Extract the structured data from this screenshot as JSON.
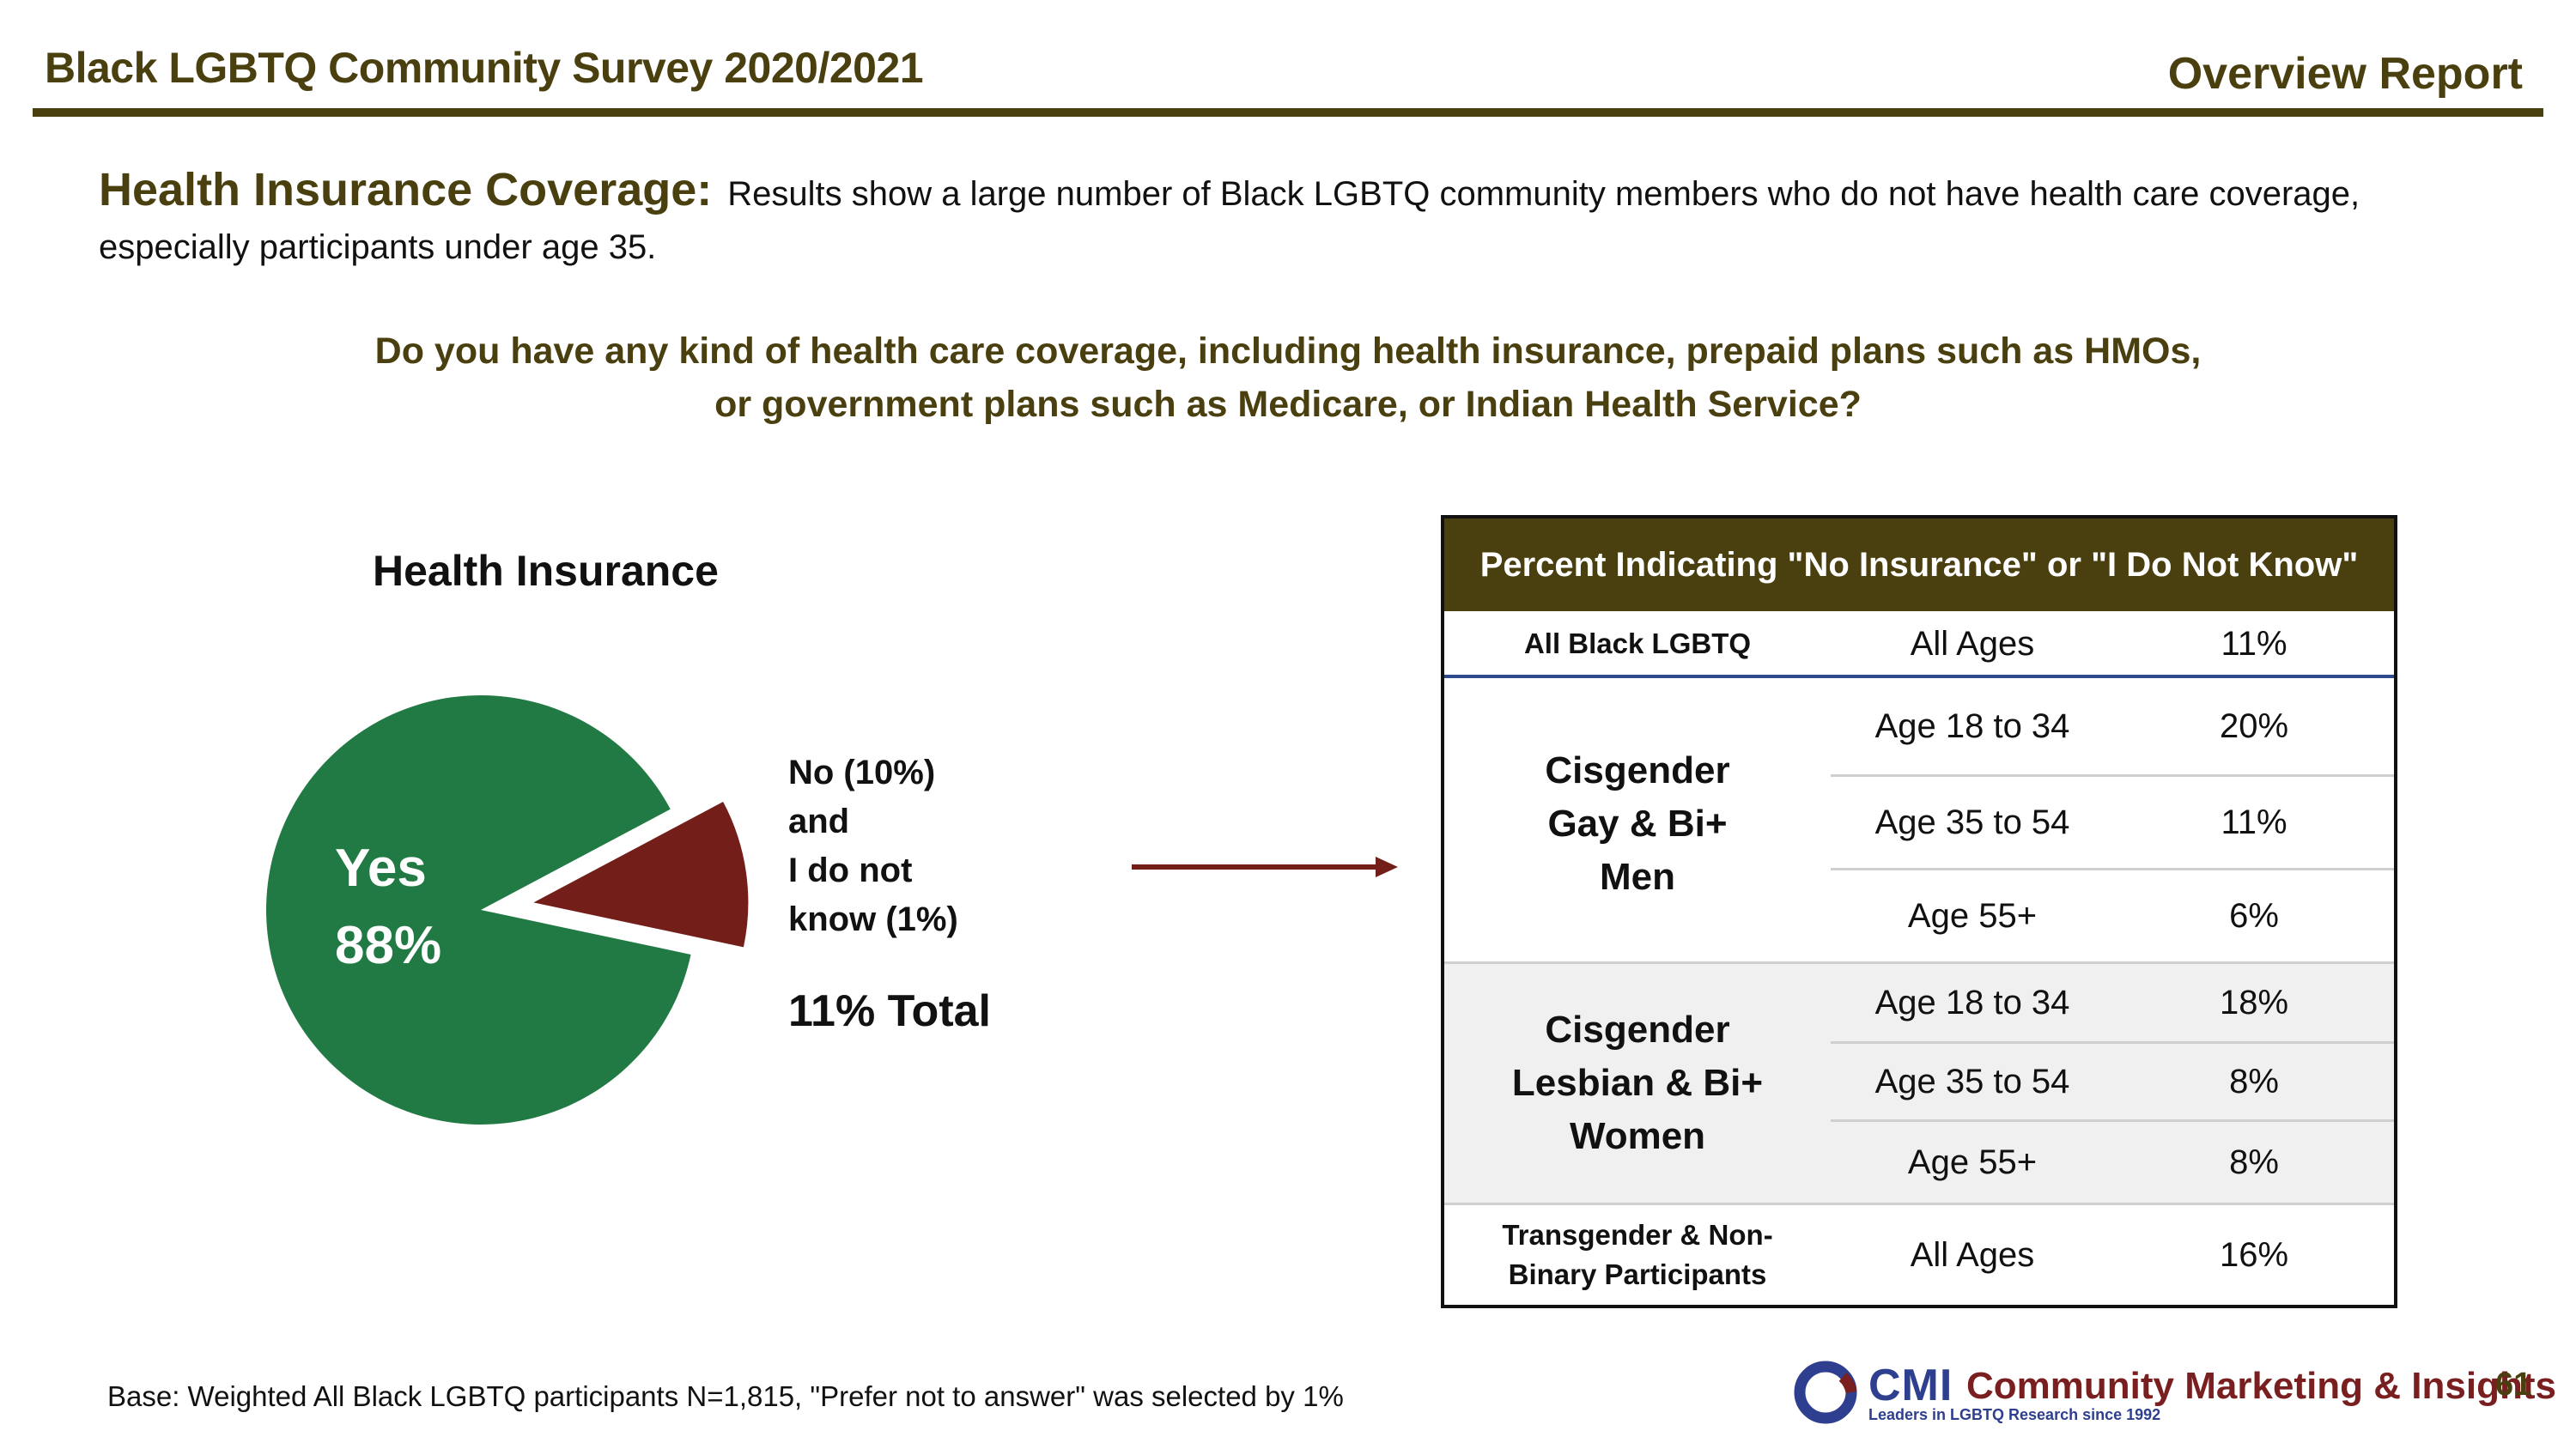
{
  "header": {
    "title": "Black LGBTQ Community Survey 2020/2021",
    "report": "Overview Report"
  },
  "intro": {
    "lead": "Health Insurance Coverage:",
    "text": "Results show a large number of Black LGBTQ community members who do not have health care coverage, especially participants under age 35."
  },
  "question": {
    "line1": "Do you have any kind of health care coverage, including health insurance, prepaid plans such as HMOs,",
    "line2": "or government plans such as Medicare, or Indian Health Service?"
  },
  "chart_data": {
    "type": "pie",
    "title": "Health Insurance",
    "slices": [
      {
        "label": "Yes",
        "value": 88,
        "display": "88%",
        "color": "#217a44"
      },
      {
        "label": "No (10%) and I do not know (1%)",
        "value": 11,
        "display": "11% Total",
        "color": "#741e1a"
      }
    ],
    "legend": {
      "line1": "No (10%)",
      "line2": "and",
      "line3": "I do not",
      "line4": "know (1%)",
      "total": "11% Total"
    }
  },
  "table": {
    "header": "Percent Indicating \"No Insurance\" or \"I Do Not Know\"",
    "rows": [
      {
        "group": "All Black LGBTQ",
        "age": "All Ages",
        "pct": "11%"
      },
      {
        "group": "Cisgender Gay & Bi+ Men",
        "age": "Age 18 to 34",
        "pct": "20%"
      },
      {
        "group": "Cisgender Gay & Bi+ Men",
        "age": "Age 35 to 54",
        "pct": "11%"
      },
      {
        "group": "Cisgender Gay & Bi+ Men",
        "age": "Age 55+",
        "pct": "6%"
      },
      {
        "group": "Cisgender Lesbian & Bi+ Women",
        "age": "Age 18 to 34",
        "pct": "18%"
      },
      {
        "group": "Cisgender Lesbian & Bi+ Women",
        "age": "Age 35 to 54",
        "pct": "8%"
      },
      {
        "group": "Cisgender Lesbian & Bi+ Women",
        "age": "Age 55+",
        "pct": "8%"
      },
      {
        "group": "Transgender & Non-Binary Participants",
        "age": "All Ages",
        "pct": "16%"
      }
    ],
    "groups": {
      "all": "All Black LGBTQ",
      "men": {
        "line1": "Cisgender",
        "line2": "Gay & Bi+",
        "line3": "Men"
      },
      "women": {
        "line1": "Cisgender",
        "line2": "Lesbian & Bi+",
        "line3": "Women"
      },
      "trans": {
        "line1": "Transgender & Non-",
        "line2": "Binary Participants"
      }
    }
  },
  "footer": {
    "base": "Base: Weighted All Black LGBTQ participants N=1,815, \"Prefer not to answer\" was selected by 1%",
    "logo_cmi": "CMI",
    "logo_name": "Community Marketing & Insights",
    "logo_tagline": "Leaders in LGBTQ Research since 1992",
    "page": "61"
  },
  "colors": {
    "brand_olive": "#4a3f0f",
    "yes_green": "#217a44",
    "no_red": "#741e1a",
    "logo_blue": "#2e3f8f"
  }
}
